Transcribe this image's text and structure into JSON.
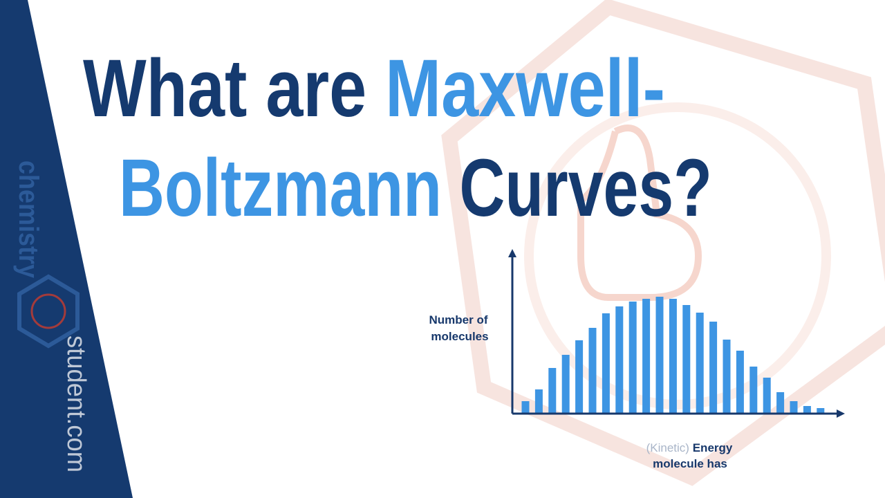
{
  "title": {
    "line1": [
      "What are",
      "Maxwell-"
    ],
    "line2": [
      "Boltzmann",
      "Curves?"
    ]
  },
  "brand": {
    "name": "chemistry",
    "site": "student.com"
  },
  "chart_data": {
    "type": "bar",
    "y_label": [
      "Number of",
      "molecules"
    ],
    "x_label": {
      "prefix": "(Kinetic)",
      "main": "Energy",
      "line2": "molecule has"
    },
    "values": [
      18,
      35,
      66,
      85,
      106,
      124,
      145,
      155,
      162,
      166,
      169,
      166,
      157,
      146,
      133,
      107,
      91,
      68,
      52,
      31,
      18,
      11,
      8
    ],
    "color": "#3d95e3",
    "axis_color": "#17386b",
    "ylim": [
      0,
      236
    ]
  }
}
